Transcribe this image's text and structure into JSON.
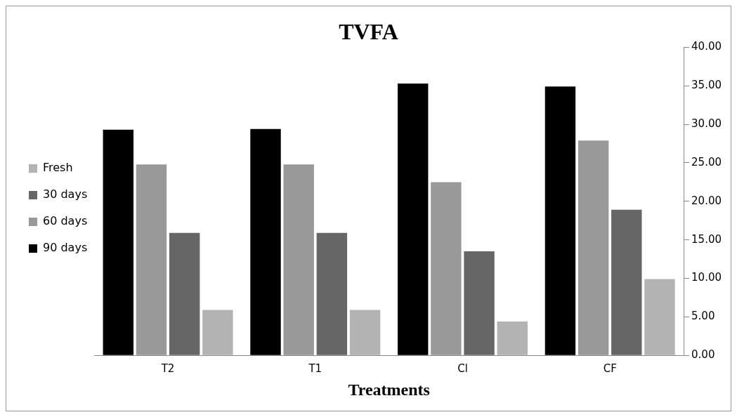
{
  "chart_data": {
    "type": "bar",
    "title": "TVFA",
    "xlabel": "Treatments",
    "categories": [
      "T2",
      "T1",
      "Cl",
      "CF"
    ],
    "series": [
      {
        "name": "90 days",
        "color": "#000000",
        "values": [
          29.3,
          29.4,
          35.3,
          34.9
        ]
      },
      {
        "name": "60 days",
        "color": "#999999",
        "values": [
          24.8,
          24.8,
          22.5,
          27.9
        ]
      },
      {
        "name": "30 days",
        "color": "#666666",
        "values": [
          15.9,
          15.9,
          13.5,
          18.9
        ]
      },
      {
        "name": "Fresh",
        "color": "#b3b3b3",
        "values": [
          5.9,
          5.9,
          4.4,
          9.9
        ]
      }
    ],
    "ylim": [
      0,
      40
    ],
    "yticks": [
      {
        "value": 0,
        "label": "0.00"
      },
      {
        "value": 5,
        "label": "5.00"
      },
      {
        "value": 10,
        "label": "10.00"
      },
      {
        "value": 15,
        "label": "15.00"
      },
      {
        "value": 20,
        "label": "20.00"
      },
      {
        "value": 25,
        "label": "25.00"
      },
      {
        "value": 30,
        "label": "30.00"
      },
      {
        "value": 35,
        "label": "35.00"
      },
      {
        "value": 40,
        "label": "40.00"
      }
    ],
    "grid": false,
    "legend": "left"
  }
}
